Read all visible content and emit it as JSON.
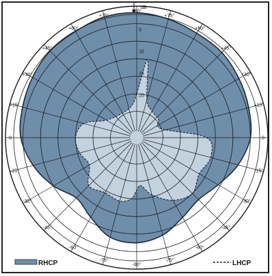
{
  "chart_data": {
    "type": "polar",
    "title": "",
    "radial_unit": "dB",
    "radial_ticks": [
      "5",
      "10",
      "15",
      "20"
    ],
    "angle_labels_left": [
      "-90°",
      "-75°",
      "-60°",
      "-45°",
      "-30°",
      "-15°",
      "0",
      "+15°",
      "+30°",
      "+45°",
      "+60°",
      "+75°"
    ],
    "angle_labels_right": [
      "+90°",
      "+75°",
      "+60°",
      "+45°",
      "+30°",
      "+15°",
      "0",
      "-15°",
      "-30°",
      "-45°",
      "-60°",
      "-75°"
    ],
    "angle_labels_top": [
      "+75°",
      "+75°"
    ],
    "colors": {
      "rhcp": "#6f8eaa",
      "lhcp": "#c3d2df",
      "grid": "#1a1a1a"
    },
    "series": [
      {
        "name": "RHCP",
        "style": "filled",
        "note_angle": "degrees clockwise from top",
        "points": [
          [
            0,
            1.5
          ],
          [
            15,
            2.0
          ],
          [
            30,
            2.5
          ],
          [
            45,
            2.5
          ],
          [
            60,
            3.0
          ],
          [
            75,
            3.5
          ],
          [
            90,
            4.0
          ],
          [
            105,
            6.0
          ],
          [
            120,
            8.5
          ],
          [
            135,
            10.0
          ],
          [
            150,
            9.0
          ],
          [
            165,
            7.0
          ],
          [
            180,
            6.0
          ],
          [
            195,
            6.5
          ],
          [
            210,
            9.0
          ],
          [
            225,
            10.5
          ],
          [
            240,
            8.0
          ],
          [
            255,
            5.5
          ],
          [
            270,
            3.5
          ],
          [
            285,
            3.0
          ],
          [
            300,
            2.5
          ],
          [
            315,
            2.0
          ],
          [
            330,
            2.0
          ],
          [
            345,
            1.5
          ]
        ]
      },
      {
        "name": "LHCP",
        "style": "dashed",
        "note_angle": "degrees clockwise from top",
        "points": [
          [
            0,
            20.0
          ],
          [
            8,
            12.0
          ],
          [
            15,
            21.0
          ],
          [
            30,
            23.0
          ],
          [
            50,
            23.5
          ],
          [
            70,
            24.0
          ],
          [
            90,
            14.0
          ],
          [
            105,
            12.5
          ],
          [
            120,
            13.5
          ],
          [
            135,
            12.0
          ],
          [
            150,
            13.5
          ],
          [
            165,
            16.5
          ],
          [
            175,
            19.0
          ],
          [
            180,
            18.0
          ],
          [
            185,
            16.0
          ],
          [
            195,
            15.0
          ],
          [
            210,
            15.5
          ],
          [
            225,
            14.5
          ],
          [
            240,
            17.5
          ],
          [
            255,
            16.5
          ],
          [
            270,
            16.0
          ],
          [
            285,
            17.5
          ],
          [
            300,
            22.0
          ],
          [
            330,
            23.5
          ],
          [
            352,
            22.5
          ]
        ]
      }
    ],
    "legend": [
      {
        "name": "RHCP",
        "style": "filled",
        "placement": "bottom-left"
      },
      {
        "name": "LHCP",
        "style": "dashed",
        "placement": "bottom-right"
      }
    ]
  }
}
